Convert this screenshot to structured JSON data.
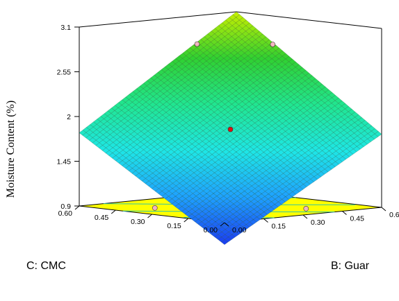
{
  "chart_data": {
    "type": "surface3d",
    "title": "",
    "zlabel": "Moisture Content (%)",
    "xlabel": "C: CMC",
    "ylabel": "B: Guar",
    "x_ticks": [
      "0.00",
      "0.15",
      "0.30",
      "0.45",
      "0.60"
    ],
    "y_ticks": [
      "0.00",
      "0.15",
      "0.30",
      "0.45",
      "0.60"
    ],
    "z_ticks": [
      "0.9",
      "1.45",
      "2",
      "2.55",
      "3.1"
    ],
    "xlim": [
      0,
      0.6
    ],
    "ylim": [
      0,
      0.6
    ],
    "zlim": [
      0.9,
      3.1
    ],
    "surface_corners": {
      "cmc0_guar0": 0.63,
      "cmc060_guar0": 1.8,
      "cmc0_guar060": 1.8,
      "cmc060_guar060": 3.1
    },
    "design_points": [
      {
        "cmc": 0.3,
        "guar": 0.3,
        "moisture": 1.85,
        "color": "#e01010"
      },
      {
        "cmc": 0.45,
        "guar": 0.15,
        "moisture": 0.88,
        "color": "#f2b6c0"
      },
      {
        "cmc": 0.15,
        "guar": 0.45,
        "moisture": 0.88,
        "color": "#f2b6c0"
      },
      {
        "cmc": 0.6,
        "guar": 0.45,
        "moisture": 2.75,
        "color": "#f2b6c0"
      },
      {
        "cmc": 0.45,
        "guar": 0.6,
        "moisture": 2.75,
        "color": "#f2b6c0"
      }
    ],
    "floor_color": "#ffff00",
    "contour_color": "#2fc4a8",
    "colormap": [
      "#1a3cf0",
      "#1ea0ff",
      "#1ee6e6",
      "#20e690",
      "#30d030",
      "#c8f000"
    ]
  }
}
